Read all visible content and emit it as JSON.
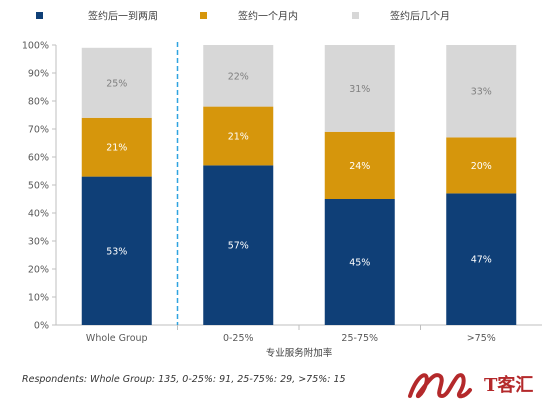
{
  "chart_data": {
    "type": "bar",
    "stacked": true,
    "percent": true,
    "categories": [
      "Whole Group",
      "0-25%",
      "25-75%",
      ">75%"
    ],
    "series": [
      {
        "name": "签约后一到两周",
        "color": "#0f3f77",
        "values": [
          53,
          57,
          45,
          47
        ]
      },
      {
        "name": "签约一个月内",
        "color": "#d6960c",
        "values": [
          21,
          21,
          24,
          20
        ]
      },
      {
        "name": "签约后几个月",
        "color": "#d7d7d7",
        "values": [
          25,
          22,
          31,
          33
        ]
      }
    ],
    "value_labels": [
      [
        "53%",
        "57%",
        "45%",
        "47%"
      ],
      [
        "21%",
        "21%",
        "24%",
        "20%"
      ],
      [
        "25%",
        "22%",
        "31%",
        "33%"
      ]
    ],
    "xlabel": "专业服务附加率",
    "ylabel": "",
    "ylim": [
      0,
      100
    ],
    "yticks": [
      "0%",
      "10%",
      "20%",
      "30%",
      "40%",
      "50%",
      "60%",
      "70%",
      "80%",
      "90%",
      "100%"
    ],
    "legend_position": "top",
    "divider": "dashed line after first category",
    "grid": false
  },
  "footnote": "Respondents: Whole Group: 135, 0-25%: 91, 25-75%: 29, >75%: 15",
  "logo": {
    "text": "T客汇",
    "color": "#b4292b"
  }
}
